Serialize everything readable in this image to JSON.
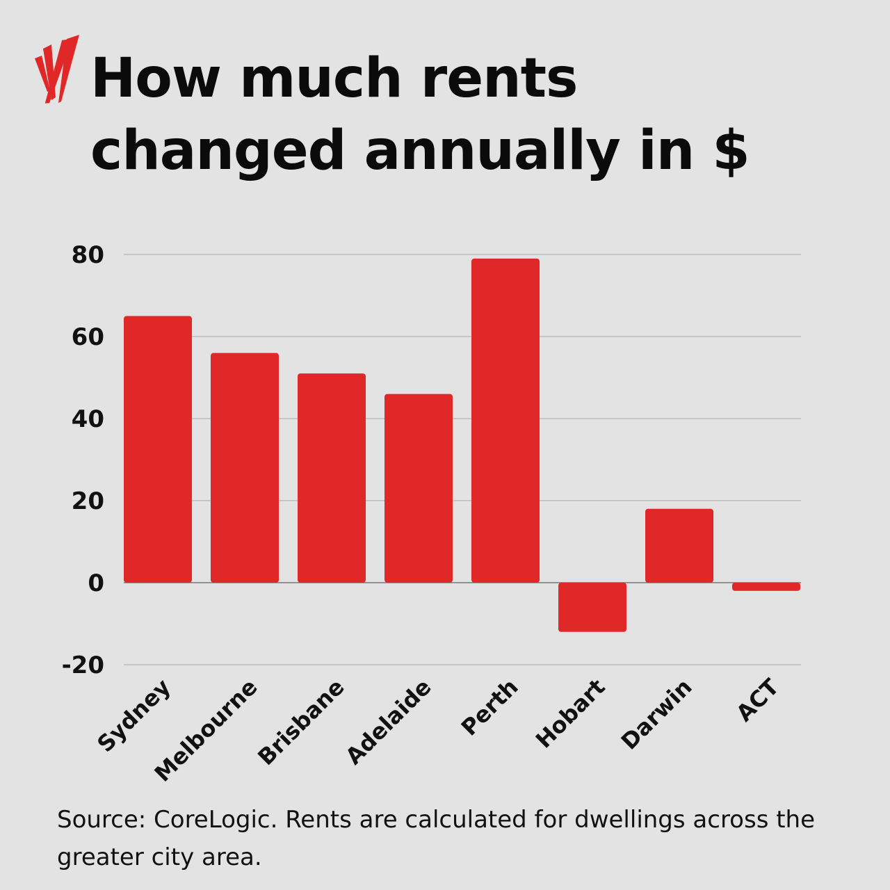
{
  "title_line1": "How much rents",
  "title_line2": "changed annually in $",
  "logo": "SBS logo",
  "source": "Source: CoreLogic. Rents are calculated for dwellings across the greater city area.",
  "colors": {
    "bar": "#e12828",
    "background": "#e3e3e3",
    "grid": "#a8a8a8"
  },
  "chart_data": {
    "type": "bar",
    "categories": [
      "Sydney",
      "Melbourne",
      "Brisbane",
      "Adelaide",
      "Perth",
      "Hobart",
      "Darwin",
      "ACT"
    ],
    "values": [
      65,
      56,
      51,
      46,
      79,
      -12,
      18,
      -2
    ],
    "title": "How much rents changed annually in $",
    "xlabel": "",
    "ylabel": "",
    "ylim": [
      -20,
      80
    ],
    "yticks": [
      80,
      60,
      40,
      20,
      0,
      -20
    ],
    "grid": true,
    "legend": "none"
  }
}
